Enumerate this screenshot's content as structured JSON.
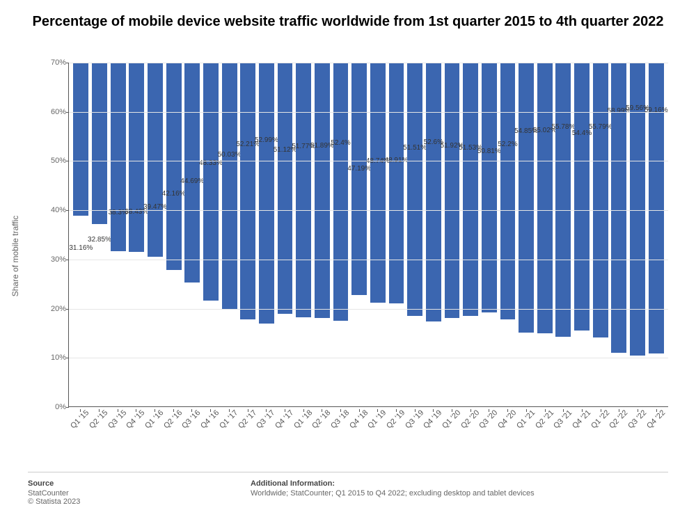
{
  "title": "Percentage of mobile device website traffic worldwide from 1st quarter 2015 to 4th quarter 2022",
  "chart": {
    "type": "bar",
    "ylabel": "Share of mobile traffic",
    "ylim": [
      0,
      70
    ],
    "ytick_step": 10,
    "ytick_suffix": "%",
    "bar_color": "#3b66b0",
    "background_color": "#ffffff",
    "grid_color": "#e6e6e6",
    "axis_color": "#555555",
    "value_label_color": "#333333",
    "value_label_fontsize": 10,
    "tick_label_color": "#666666",
    "tick_label_fontsize": 11,
    "title_fontsize": 20,
    "title_color": "#000000",
    "bar_width_ratio": 0.82,
    "x_label_rotation": -45,
    "categories": [
      "Q1 '15",
      "Q2 '15",
      "Q3 '15",
      "Q4 '15",
      "Q1 '16",
      "Q2 '16",
      "Q3 '16",
      "Q4 '16",
      "Q1 '17",
      "Q2 '17",
      "Q3 '17",
      "Q4 '17",
      "Q1 '18",
      "Q2 '18",
      "Q3 '18",
      "Q4 '18",
      "Q1 '19",
      "Q2 '19",
      "Q3 '19",
      "Q4 '19",
      "Q1 '20",
      "Q2 '20",
      "Q3 '20",
      "Q4 '20",
      "Q1 '21",
      "Q2 '21",
      "Q3 '21",
      "Q4 '21",
      "Q1 '22",
      "Q2 '22",
      "Q3 '22",
      "Q4 '22"
    ],
    "values": [
      31.16,
      32.85,
      38.3,
      38.43,
      39.47,
      42.16,
      44.69,
      48.33,
      50.03,
      52.21,
      52.99,
      51.12,
      51.77,
      51.89,
      52.4,
      47.19,
      48.74,
      48.91,
      51.51,
      52.6,
      51.92,
      51.53,
      50.81,
      52.2,
      54.85,
      55.02,
      55.78,
      54.4,
      55.79,
      58.99,
      59.56,
      59.16
    ],
    "value_labels": [
      "31.16%",
      "32.85%",
      "38.3%",
      "38.43%",
      "39.47%",
      "42.16%",
      "44.69%",
      "48.33%",
      "50.03%",
      "52.21%",
      "52.99%",
      "51.12%",
      "51.77%",
      "51.89%",
      "52.4%",
      "47.19%",
      "48.74%",
      "48.91%",
      "51.51%",
      "52.6%",
      "51.92%",
      "51.53%",
      "50.81%",
      "52.2%",
      "54.85%",
      "55.02%",
      "55.78%",
      "54.4%",
      "55.79%",
      "58.99%",
      "59.56%",
      "59.16%"
    ]
  },
  "footer": {
    "source_heading": "Source",
    "source_line1": "StatCounter",
    "copyright": "© Statista 2023",
    "info_heading": "Additional Information:",
    "info_text": "Worldwide; StatCounter; Q1 2015 to Q4 2022; excluding desktop and tablet devices"
  }
}
